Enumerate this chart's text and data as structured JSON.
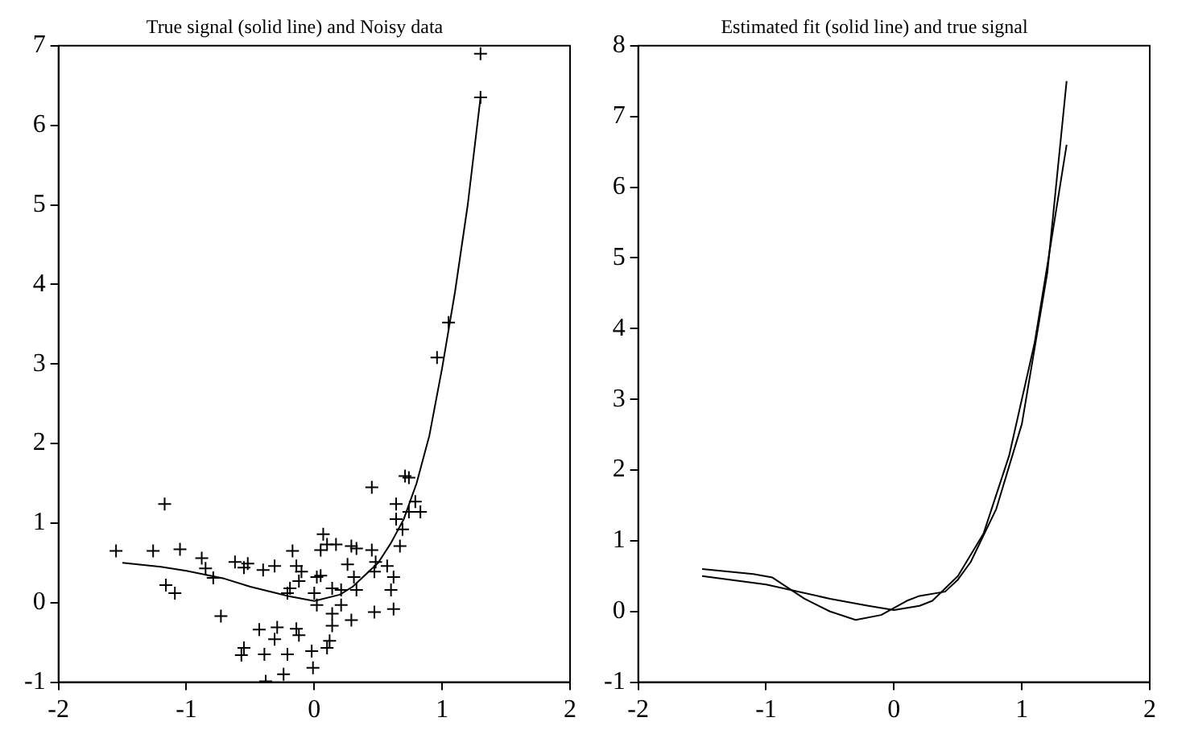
{
  "chart_data": [
    {
      "type": "scatter",
      "title": "True signal (solid line) and Noisy data",
      "xlim": [
        -2,
        2
      ],
      "xticks": [
        -2,
        -1,
        0,
        1,
        2
      ],
      "ylim": [
        -1,
        7
      ],
      "yticks": [
        -1,
        0,
        1,
        2,
        3,
        4,
        5,
        6,
        7
      ],
      "grid": false,
      "legend": false,
      "series": [
        {
          "marker": "cross",
          "color": "#000000",
          "x": [
            -1.55,
            -1.26,
            -1.05,
            -1.17,
            -1.16,
            -1.09,
            -0.88,
            -0.85,
            -0.79,
            -0.73,
            -0.62,
            -0.52,
            -0.55,
            -0.4,
            -0.31,
            -0.14,
            -0.17,
            -0.1,
            -0.12,
            -0.19,
            -0.21,
            0.02,
            0.05,
            0,
            0.02,
            0.07,
            0.1,
            0.17,
            0.05,
            0.29,
            0.33,
            0.26,
            0.31,
            0.14,
            0.21,
            0.33,
            0.21,
            0.14,
            0.29,
            0.14,
            0.45,
            0.45,
            0.48,
            0.47,
            0.57,
            0.62,
            0.6,
            0.47,
            0.62,
            0.67,
            0.69,
            0.64,
            0.64,
            0.71,
            0.74,
            0.79,
            0.83,
            0.74,
            -0.43,
            -0.29,
            -0.14,
            -0.12,
            -0.31,
            -0.55,
            -0.57,
            -0.39,
            -0.21,
            -0.02,
            0.1,
            0.12,
            -0.24,
            -0.01,
            -0.38,
            1.3,
            1.3,
            1.05,
            0.96
          ],
          "values": [
            0.65,
            0.65,
            0.67,
            1.24,
            0.22,
            0.12,
            0.56,
            0.43,
            0.31,
            -0.17,
            0.51,
            0.49,
            0.44,
            0.41,
            0.46,
            0.46,
            0.65,
            0.39,
            0.27,
            0.18,
            0.12,
            0.32,
            0.34,
            0.12,
            -0.03,
            0.86,
            0.73,
            0.73,
            0.66,
            0.71,
            0.68,
            0.48,
            0.32,
            0.18,
            0.16,
            0.16,
            -0.03,
            -0.14,
            -0.22,
            -0.29,
            1.45,
            0.66,
            0.51,
            0.39,
            0.46,
            0.32,
            0.16,
            -0.12,
            -0.08,
            0.71,
            0.92,
            1.05,
            1.24,
            1.59,
            1.57,
            1.27,
            1.14,
            1.14,
            -0.34,
            -0.31,
            -0.33,
            -0.41,
            -0.46,
            -0.57,
            -0.66,
            -0.65,
            -0.65,
            -0.61,
            -0.57,
            -0.48,
            -0.9,
            -0.82,
            -0.99,
            6.9,
            6.35,
            3.52,
            3.08
          ]
        },
        {
          "type": "line",
          "marker": "none",
          "color": "#000000",
          "x": [
            -1.5,
            -1.2,
            -1,
            -0.7,
            -0.5,
            -0.2,
            0,
            0.2,
            0.3,
            0.5,
            0.6,
            0.7,
            0.8,
            0.9,
            1,
            1.1,
            1.2,
            1.3
          ],
          "values": [
            0.5,
            0.45,
            0.4,
            0.3,
            0.2,
            0.08,
            0.02,
            0.1,
            0.2,
            0.5,
            0.75,
            1.05,
            1.5,
            2.1,
            2.95,
            3.9,
            5.0,
            6.35
          ]
        }
      ]
    },
    {
      "type": "line",
      "title": "Estimated fit (solid line) and true signal",
      "xlim": [
        -2,
        2
      ],
      "xticks": [
        -2,
        -1,
        0,
        1,
        2
      ],
      "ylim": [
        -1,
        8
      ],
      "yticks": [
        -1,
        0,
        1,
        2,
        3,
        4,
        5,
        6,
        7,
        8
      ],
      "grid": false,
      "legend": false,
      "series": [
        {
          "marker": "none",
          "color": "#000000",
          "x": [
            -1.5,
            -1,
            -0.5,
            -0.2,
            0,
            0.2,
            0.3,
            0.5,
            0.7,
            0.9,
            1.1,
            1.2,
            1.35
          ],
          "values": [
            0.5,
            0.38,
            0.18,
            0.08,
            0.02,
            0.08,
            0.15,
            0.5,
            1.1,
            2.2,
            3.8,
            4.9,
            6.6
          ]
        },
        {
          "marker": "none",
          "color": "#000000",
          "x": [
            -1.5,
            -1.1,
            -0.95,
            -0.8,
            -0.7,
            -0.5,
            -0.3,
            -0.1,
            0.1,
            0.2,
            0.4,
            0.5,
            0.6,
            0.8,
            1,
            1.2,
            1.35
          ],
          "values": [
            0.6,
            0.53,
            0.48,
            0.3,
            0.18,
            0,
            -0.12,
            -0.05,
            0.15,
            0.22,
            0.28,
            0.45,
            0.7,
            1.45,
            2.65,
            4.8,
            7.5
          ]
        }
      ]
    }
  ]
}
